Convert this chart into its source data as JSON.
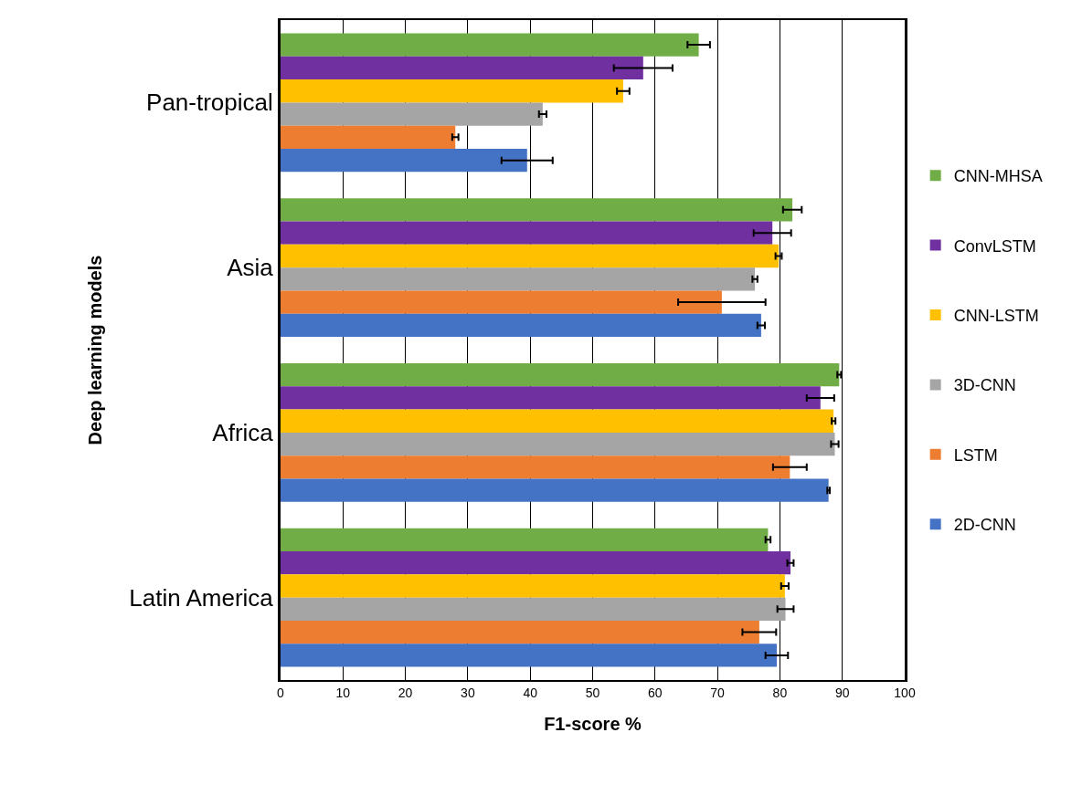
{
  "chart_data": {
    "type": "bar",
    "orientation": "horizontal",
    "xlabel": "F1-score %",
    "ylabel": "Deep learning models",
    "categories": [
      "Pan-tropical",
      "Asia",
      "Africa",
      "Latin America"
    ],
    "series": [
      {
        "name": "CNN-MHSA",
        "color": "#70ad47",
        "values": [
          67.0,
          82.0,
          89.5,
          78.1
        ],
        "errors": [
          1.8,
          1.5,
          0.3,
          0.4
        ]
      },
      {
        "name": "ConvLSTM",
        "color": "#7030a0",
        "values": [
          58.1,
          78.8,
          86.5,
          81.7
        ],
        "errors": [
          4.7,
          3.0,
          2.2,
          0.5
        ]
      },
      {
        "name": "CNN-LSTM",
        "color": "#ffc000",
        "values": [
          54.9,
          79.8,
          88.6,
          80.8
        ],
        "errors": [
          1.0,
          0.5,
          0.3,
          0.6
        ]
      },
      {
        "name": "3D-CNN",
        "color": "#a5a5a5",
        "values": [
          42.0,
          76.0,
          88.8,
          80.9
        ],
        "errors": [
          0.6,
          0.4,
          0.6,
          1.3
        ]
      },
      {
        "name": "LSTM",
        "color": "#ed7d31",
        "values": [
          28.0,
          70.7,
          81.6,
          76.7
        ],
        "errors": [
          0.5,
          7.0,
          2.7,
          2.7
        ]
      },
      {
        "name": "2D-CNN",
        "color": "#4472c4",
        "values": [
          39.5,
          77.0,
          87.8,
          79.5
        ],
        "errors": [
          4.1,
          0.6,
          0.2,
          1.8
        ]
      }
    ],
    "xlim": [
      0,
      100
    ],
    "xticks": [
      0,
      10,
      20,
      30,
      40,
      50,
      60,
      70,
      80,
      90,
      100
    ],
    "grid": "x",
    "legend": "right"
  }
}
